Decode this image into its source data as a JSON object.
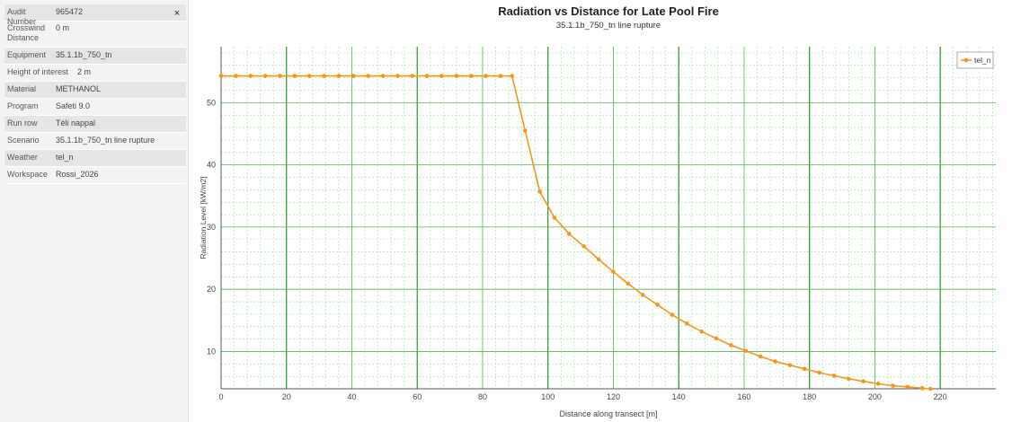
{
  "properties": {
    "rows": [
      {
        "key": "Audit Number",
        "value": "965472"
      },
      {
        "key": "Crosswind Distance",
        "value": "0 m"
      },
      {
        "key": "Equipment",
        "value": "35.1.1b_750_tn"
      },
      {
        "key": "Height of interest",
        "value": "2 m"
      },
      {
        "key": "Material",
        "value": "METHANOL"
      },
      {
        "key": "Program",
        "value": "Safeti 9.0"
      },
      {
        "key": "Run row",
        "value": "Téli nappal"
      },
      {
        "key": "Scenario",
        "value": "35.1.1b_750_tn line rupture"
      },
      {
        "key": "Weather",
        "value": "tel_n"
      },
      {
        "key": "Workspace",
        "value": "Rossi_2026"
      }
    ],
    "close_glyph": "×",
    "close_icon": "close-icon"
  },
  "chart_data": {
    "type": "line",
    "title": "Radiation vs Distance for Late Pool Fire",
    "subtitle": "35.1.1b_750_tn line rupture",
    "xlabel": "Distance along transect [m]",
    "ylabel": "Radiation Level [kW/m2]",
    "xlim": [
      0,
      237
    ],
    "ylim": [
      4,
      59
    ],
    "xticks": [
      0,
      20,
      40,
      60,
      80,
      100,
      120,
      140,
      160,
      180,
      200,
      220
    ],
    "yticks": [
      10,
      20,
      30,
      40,
      50
    ],
    "grid": true,
    "legend": "top-right",
    "series": [
      {
        "name": "tel_n",
        "color": "#f7941d",
        "x": [
          0,
          4.5,
          9,
          13.5,
          18,
          22.5,
          27,
          31.5,
          36,
          40.5,
          45,
          49.5,
          54,
          58.5,
          63,
          67.5,
          72,
          76.5,
          81,
          85.5,
          89,
          93,
          97.5,
          102,
          106.5,
          111,
          115.5,
          120,
          124.5,
          129,
          133.5,
          138,
          142.5,
          147,
          151.5,
          156,
          160.5,
          165,
          169.5,
          174,
          178.5,
          183,
          187.5,
          192,
          196.5,
          201,
          205.5,
          210,
          214.5,
          217
        ],
        "values": [
          54.3,
          54.3,
          54.3,
          54.3,
          54.3,
          54.3,
          54.3,
          54.3,
          54.3,
          54.3,
          54.3,
          54.3,
          54.3,
          54.3,
          54.3,
          54.3,
          54.3,
          54.3,
          54.3,
          54.3,
          54.3,
          45.5,
          35.7,
          31.5,
          28.9,
          26.9,
          24.8,
          22.8,
          20.9,
          19.1,
          17.5,
          15.9,
          14.5,
          13.2,
          12.1,
          11.0,
          10.1,
          9.2,
          8.4,
          7.8,
          7.2,
          6.6,
          6.1,
          5.6,
          5.2,
          4.8,
          4.5,
          4.3,
          4.1,
          4.0
        ]
      }
    ]
  }
}
